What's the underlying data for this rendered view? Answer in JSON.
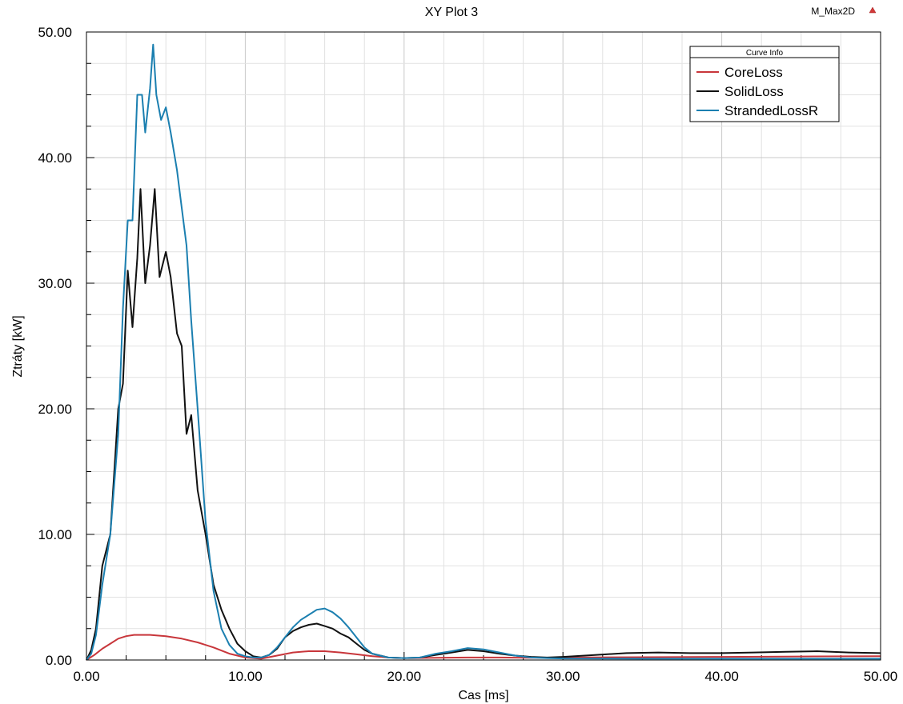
{
  "header": {
    "brand": "M_Max2D",
    "brand_icon": "warning-triangle-icon",
    "brand_icon_color": "#d23a3a"
  },
  "chart_data": {
    "type": "line",
    "title": "XY Plot 3",
    "xlabel": "Cas [ms]",
    "ylabel": "Ztráty [kW]",
    "xlim": [
      0,
      50
    ],
    "ylim": [
      0,
      50
    ],
    "xticks": [
      "0.00",
      "10.00",
      "20.00",
      "30.00",
      "40.00",
      "50.00"
    ],
    "yticks": [
      "0.00",
      "10.00",
      "20.00",
      "30.00",
      "40.00",
      "50.00"
    ],
    "grid": true,
    "legend": {
      "title": "Curve Info",
      "placement": "top-right"
    },
    "series": [
      {
        "name": "CoreLoss",
        "color": "#c8363b",
        "points": [
          [
            0,
            0
          ],
          [
            0.5,
            0.4
          ],
          [
            1,
            0.9
          ],
          [
            1.5,
            1.3
          ],
          [
            2,
            1.7
          ],
          [
            2.5,
            1.9
          ],
          [
            3,
            2.0
          ],
          [
            3.5,
            2.0
          ],
          [
            4,
            2.0
          ],
          [
            5,
            1.9
          ],
          [
            6,
            1.7
          ],
          [
            7,
            1.4
          ],
          [
            8,
            1.0
          ],
          [
            9,
            0.5
          ],
          [
            10,
            0.2
          ],
          [
            11,
            0.1
          ],
          [
            12,
            0.35
          ],
          [
            13,
            0.6
          ],
          [
            14,
            0.7
          ],
          [
            15,
            0.7
          ],
          [
            16,
            0.6
          ],
          [
            17,
            0.45
          ],
          [
            18,
            0.3
          ],
          [
            19,
            0.2
          ],
          [
            20,
            0.15
          ],
          [
            22,
            0.18
          ],
          [
            24,
            0.2
          ],
          [
            26,
            0.2
          ],
          [
            28,
            0.18
          ],
          [
            30,
            0.2
          ],
          [
            35,
            0.22
          ],
          [
            40,
            0.25
          ],
          [
            45,
            0.28
          ],
          [
            50,
            0.3
          ]
        ]
      },
      {
        "name": "SolidLoss",
        "color": "#111111",
        "points": [
          [
            0,
            0
          ],
          [
            0.3,
            0.8
          ],
          [
            0.6,
            2.5
          ],
          [
            1,
            7.5
          ],
          [
            1.5,
            10
          ],
          [
            2,
            20
          ],
          [
            2.3,
            22
          ],
          [
            2.6,
            31
          ],
          [
            2.9,
            26.5
          ],
          [
            3.2,
            32
          ],
          [
            3.4,
            37.5
          ],
          [
            3.7,
            30
          ],
          [
            4,
            33
          ],
          [
            4.3,
            37.5
          ],
          [
            4.6,
            30.5
          ],
          [
            5,
            32.5
          ],
          [
            5.3,
            30.5
          ],
          [
            5.7,
            26
          ],
          [
            6,
            25
          ],
          [
            6.3,
            18
          ],
          [
            6.6,
            19.5
          ],
          [
            7,
            13.5
          ],
          [
            7.5,
            10
          ],
          [
            8,
            6
          ],
          [
            8.5,
            4
          ],
          [
            9,
            2.5
          ],
          [
            9.5,
            1.3
          ],
          [
            10,
            0.7
          ],
          [
            10.5,
            0.3
          ],
          [
            11,
            0.2
          ],
          [
            11.5,
            0.4
          ],
          [
            12,
            0.9
          ],
          [
            12.5,
            1.8
          ],
          [
            13,
            2.3
          ],
          [
            13.5,
            2.6
          ],
          [
            14,
            2.8
          ],
          [
            14.5,
            2.9
          ],
          [
            15,
            2.7
          ],
          [
            15.5,
            2.5
          ],
          [
            16,
            2.1
          ],
          [
            16.5,
            1.8
          ],
          [
            17,
            1.3
          ],
          [
            17.5,
            0.8
          ],
          [
            18,
            0.5
          ],
          [
            19,
            0.2
          ],
          [
            20,
            0.15
          ],
          [
            21,
            0.2
          ],
          [
            22,
            0.4
          ],
          [
            23,
            0.6
          ],
          [
            24,
            0.8
          ],
          [
            25,
            0.7
          ],
          [
            26,
            0.5
          ],
          [
            27,
            0.35
          ],
          [
            28,
            0.25
          ],
          [
            29,
            0.2
          ],
          [
            30,
            0.25
          ],
          [
            32,
            0.4
          ],
          [
            34,
            0.55
          ],
          [
            36,
            0.6
          ],
          [
            38,
            0.55
          ],
          [
            40,
            0.55
          ],
          [
            42,
            0.6
          ],
          [
            44,
            0.65
          ],
          [
            46,
            0.7
          ],
          [
            48,
            0.6
          ],
          [
            50,
            0.55
          ]
        ]
      },
      {
        "name": "StrandedLossR",
        "color": "#1b7fb0",
        "points": [
          [
            0,
            0
          ],
          [
            0.3,
            0.5
          ],
          [
            0.6,
            2
          ],
          [
            1,
            6
          ],
          [
            1.5,
            10
          ],
          [
            2,
            18
          ],
          [
            2.3,
            28
          ],
          [
            2.6,
            35
          ],
          [
            2.9,
            35
          ],
          [
            3.2,
            45
          ],
          [
            3.5,
            45
          ],
          [
            3.7,
            42
          ],
          [
            4,
            45.5
          ],
          [
            4.2,
            49
          ],
          [
            4.4,
            45
          ],
          [
            4.7,
            43
          ],
          [
            5,
            44
          ],
          [
            5.3,
            42
          ],
          [
            5.7,
            39
          ],
          [
            6,
            36
          ],
          [
            6.3,
            33
          ],
          [
            6.6,
            27
          ],
          [
            7,
            20
          ],
          [
            7.5,
            11
          ],
          [
            8,
            5.5
          ],
          [
            8.5,
            2.5
          ],
          [
            9,
            1.2
          ],
          [
            9.5,
            0.5
          ],
          [
            10,
            0.3
          ],
          [
            10.5,
            0.2
          ],
          [
            11,
            0.2
          ],
          [
            11.5,
            0.4
          ],
          [
            12,
            1
          ],
          [
            12.5,
            1.8
          ],
          [
            13,
            2.6
          ],
          [
            13.5,
            3.2
          ],
          [
            14,
            3.6
          ],
          [
            14.5,
            4.0
          ],
          [
            15,
            4.1
          ],
          [
            15.5,
            3.8
          ],
          [
            16,
            3.3
          ],
          [
            16.5,
            2.6
          ],
          [
            17,
            1.8
          ],
          [
            17.5,
            1.0
          ],
          [
            18,
            0.5
          ],
          [
            19,
            0.2
          ],
          [
            20,
            0.15
          ],
          [
            21,
            0.2
          ],
          [
            22,
            0.5
          ],
          [
            23,
            0.7
          ],
          [
            24,
            0.95
          ],
          [
            25,
            0.85
          ],
          [
            26,
            0.6
          ],
          [
            27,
            0.35
          ],
          [
            28,
            0.2
          ],
          [
            29,
            0.15
          ],
          [
            30,
            0.12
          ],
          [
            35,
            0.1
          ],
          [
            40,
            0.1
          ],
          [
            45,
            0.1
          ],
          [
            50,
            0.1
          ]
        ]
      }
    ]
  }
}
